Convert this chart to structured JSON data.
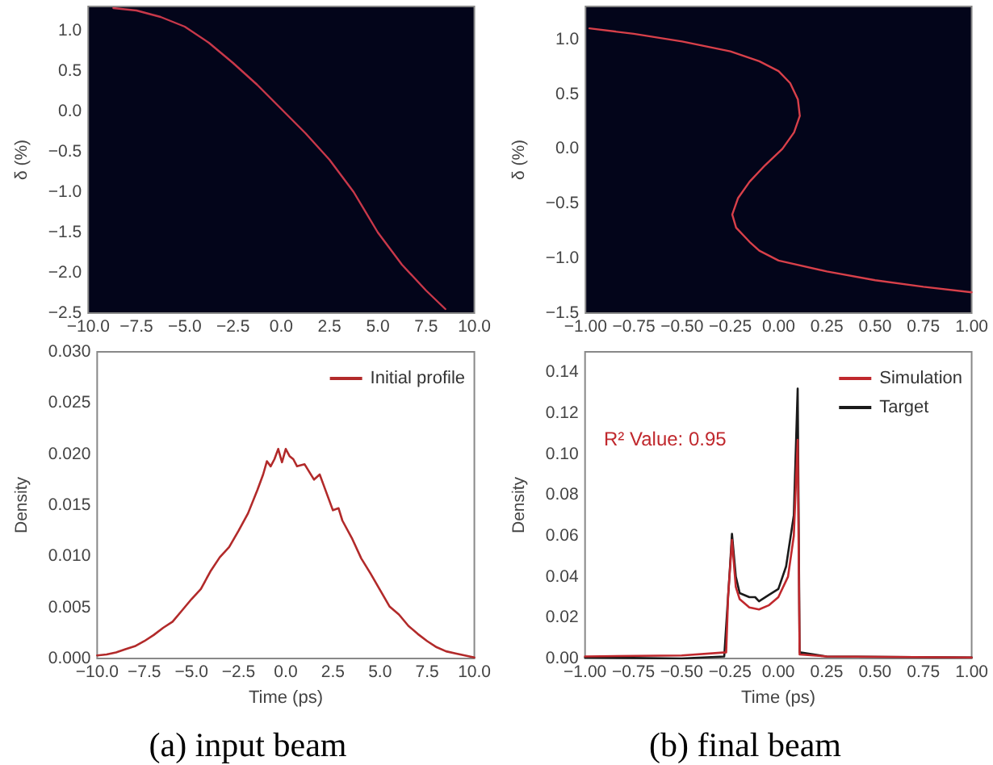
{
  "chart_data": [
    {
      "type": "line",
      "ylabel": "δ (%)",
      "xlim": [
        -10,
        10
      ],
      "ylim": [
        -2.5,
        1.3
      ],
      "grid": false,
      "xticks": [
        {
          "value": -10,
          "label": "−10.0"
        },
        {
          "value": -7.5,
          "label": "−7.5"
        },
        {
          "value": -5,
          "label": "−5.0"
        },
        {
          "value": -2.5,
          "label": "−2.5"
        },
        {
          "value": 0,
          "label": "0.0"
        },
        {
          "value": 2.5,
          "label": "2.5"
        },
        {
          "value": 5,
          "label": "5.0"
        },
        {
          "value": 7.5,
          "label": "7.5"
        },
        {
          "value": 10,
          "label": "10.0"
        }
      ],
      "yticks": [
        {
          "value": -2.5,
          "label": "−2.5"
        },
        {
          "value": -2,
          "label": "−2.0"
        },
        {
          "value": -1.5,
          "label": "−1.5"
        },
        {
          "value": -1,
          "label": "−1.0"
        },
        {
          "value": -0.5,
          "label": "−0.5"
        },
        {
          "value": 0,
          "label": "0.0"
        },
        {
          "value": 0.5,
          "label": "0.5"
        },
        {
          "value": 1,
          "label": "1.0"
        }
      ],
      "series": [
        {
          "color": "#c8384a",
          "x": [
            -8.7,
            -7.5,
            -6.25,
            -5,
            -3.75,
            -2.5,
            -1.25,
            0,
            1.25,
            2.5,
            3.75,
            5,
            6.25,
            7.5,
            8.5
          ],
          "values": [
            1.28,
            1.25,
            1.17,
            1.05,
            0.85,
            0.6,
            0.33,
            0.03,
            -0.27,
            -0.6,
            -1.0,
            -1.5,
            -1.9,
            -2.22,
            -2.45
          ]
        }
      ]
    },
    {
      "type": "line",
      "ylabel": "δ (%)",
      "xlim": [
        -1,
        1
      ],
      "ylim": [
        -1.5,
        1.3
      ],
      "grid": false,
      "xticks": [
        {
          "value": -1,
          "label": "−1.00"
        },
        {
          "value": -0.75,
          "label": "−0.75"
        },
        {
          "value": -0.5,
          "label": "−0.50"
        },
        {
          "value": -0.25,
          "label": "−0.25"
        },
        {
          "value": 0,
          "label": "0.00"
        },
        {
          "value": 0.25,
          "label": "0.25"
        },
        {
          "value": 0.5,
          "label": "0.50"
        },
        {
          "value": 0.75,
          "label": "0.75"
        },
        {
          "value": 1,
          "label": "1.00"
        }
      ],
      "yticks": [
        {
          "value": -1.5,
          "label": "−1.5"
        },
        {
          "value": -1,
          "label": "−1.0"
        },
        {
          "value": -0.5,
          "label": "−0.5"
        },
        {
          "value": 0,
          "label": "0.0"
        },
        {
          "value": 0.5,
          "label": "0.5"
        },
        {
          "value": 1,
          "label": "1.0"
        }
      ],
      "series": [
        {
          "color": "#d8404a",
          "x": [
            -0.98,
            -0.75,
            -0.5,
            -0.25,
            -0.1,
            0,
            0.06,
            0.1,
            0.11,
            0.08,
            0.02,
            -0.07,
            -0.15,
            -0.21,
            -0.24,
            -0.22,
            -0.15,
            -0.1,
            0,
            0.25,
            0.5,
            0.75,
            1.0
          ],
          "values": [
            1.1,
            1.05,
            0.98,
            0.89,
            0.8,
            0.71,
            0.6,
            0.45,
            0.3,
            0.15,
            0.0,
            -0.15,
            -0.3,
            -0.45,
            -0.6,
            -0.72,
            -0.85,
            -0.93,
            -1.02,
            -1.12,
            -1.2,
            -1.26,
            -1.31
          ]
        }
      ]
    },
    {
      "type": "line",
      "xlabel": "Time (ps)",
      "ylabel": "Density",
      "xlim": [
        -10,
        10
      ],
      "ylim": [
        0,
        0.03
      ],
      "grid": false,
      "legend": "top right",
      "annotations": [
        "(a) input beam"
      ],
      "xticks": [
        {
          "value": -10,
          "label": "−10.0"
        },
        {
          "value": -7.5,
          "label": "−7.5"
        },
        {
          "value": -5,
          "label": "−5.0"
        },
        {
          "value": -2.5,
          "label": "−2.5"
        },
        {
          "value": 0,
          "label": "0.0"
        },
        {
          "value": 2.5,
          "label": "2.5"
        },
        {
          "value": 5,
          "label": "5.0"
        },
        {
          "value": 7.5,
          "label": "7.5"
        },
        {
          "value": 10,
          "label": "10.0"
        }
      ],
      "yticks": [
        {
          "value": 0,
          "label": "0.000"
        },
        {
          "value": 0.005,
          "label": "0.005"
        },
        {
          "value": 0.01,
          "label": "0.010"
        },
        {
          "value": 0.015,
          "label": "0.015"
        },
        {
          "value": 0.02,
          "label": "0.020"
        },
        {
          "value": 0.025,
          "label": "0.025"
        },
        {
          "value": 0.03,
          "label": "0.030"
        }
      ],
      "series": [
        {
          "name": "Initial profile",
          "color": "#b22a2a",
          "x": [
            -10,
            -9.5,
            -9,
            -8.5,
            -8,
            -7.5,
            -7,
            -6.5,
            -6,
            -5.5,
            -5,
            -4.5,
            -4,
            -3.5,
            -3,
            -2.5,
            -2,
            -1.5,
            -1.2,
            -1,
            -0.8,
            -0.6,
            -0.4,
            -0.2,
            0,
            0.2,
            0.4,
            0.6,
            1,
            1.5,
            1.8,
            2,
            2.5,
            2.8,
            3,
            3.5,
            4,
            4.5,
            5,
            5.5,
            6,
            6.5,
            7,
            7.5,
            8,
            8.5,
            9,
            9.5,
            10
          ],
          "values": [
            0.0003,
            0.0004,
            0.0006,
            0.0009,
            0.0012,
            0.0017,
            0.0023,
            0.003,
            0.0036,
            0.0047,
            0.0058,
            0.0068,
            0.0085,
            0.0099,
            0.0109,
            0.0125,
            0.0142,
            0.0165,
            0.018,
            0.0193,
            0.0188,
            0.0195,
            0.0205,
            0.0192,
            0.0205,
            0.0198,
            0.0195,
            0.0188,
            0.019,
            0.0175,
            0.018,
            0.017,
            0.0145,
            0.0147,
            0.0135,
            0.0118,
            0.0098,
            0.0083,
            0.0067,
            0.0051,
            0.0043,
            0.0032,
            0.0024,
            0.0017,
            0.0011,
            0.0007,
            0.0005,
            0.0003,
            0.0001
          ]
        }
      ]
    },
    {
      "type": "line",
      "xlabel": "Time (ps)",
      "ylabel": "Density",
      "xlim": [
        -1,
        1
      ],
      "ylim": [
        0,
        0.15
      ],
      "grid": false,
      "legend": "top right",
      "annotations": [
        "R² Value: 0.95",
        "(b) final beam"
      ],
      "xticks": [
        {
          "value": -1,
          "label": "−1.00"
        },
        {
          "value": -0.75,
          "label": "−0.75"
        },
        {
          "value": -0.5,
          "label": "−0.50"
        },
        {
          "value": -0.25,
          "label": "−0.25"
        },
        {
          "value": 0,
          "label": "0.00"
        },
        {
          "value": 0.25,
          "label": "0.25"
        },
        {
          "value": 0.5,
          "label": "0.50"
        },
        {
          "value": 0.75,
          "label": "0.75"
        },
        {
          "value": 1,
          "label": "1.00"
        }
      ],
      "yticks": [
        {
          "value": 0,
          "label": "0.00"
        },
        {
          "value": 0.02,
          "label": "0.02"
        },
        {
          "value": 0.04,
          "label": "0.04"
        },
        {
          "value": 0.06,
          "label": "0.06"
        },
        {
          "value": 0.08,
          "label": "0.08"
        },
        {
          "value": 0.1,
          "label": "0.10"
        },
        {
          "value": 0.12,
          "label": "0.12"
        },
        {
          "value": 0.14,
          "label": "0.14"
        }
      ],
      "series": [
        {
          "name": "Simulation",
          "color": "#c0282d",
          "x": [
            -1,
            -0.5,
            -0.27,
            -0.26,
            -0.24,
            -0.22,
            -0.2,
            -0.15,
            -0.1,
            -0.05,
            0,
            0.05,
            0.08,
            0.1,
            0.11,
            0.25,
            1
          ],
          "values": [
            0.001,
            0.0015,
            0.003,
            0.03,
            0.058,
            0.035,
            0.029,
            0.025,
            0.024,
            0.026,
            0.03,
            0.04,
            0.06,
            0.107,
            0.002,
            0.001,
            0.0005
          ]
        },
        {
          "name": "Target",
          "color": "#1a1a1a",
          "x": [
            -1,
            -0.5,
            -0.28,
            -0.25,
            -0.24,
            -0.22,
            -0.2,
            -0.15,
            -0.12,
            -0.1,
            -0.05,
            0,
            0.04,
            0.08,
            0.1,
            0.11,
            0.25,
            1
          ],
          "values": [
            0.0005,
            0,
            0.001,
            0.045,
            0.061,
            0.04,
            0.032,
            0.03,
            0.03,
            0.028,
            0.031,
            0.034,
            0.045,
            0.07,
            0.132,
            0.003,
            0.001,
            0.0005
          ]
        }
      ]
    }
  ]
}
